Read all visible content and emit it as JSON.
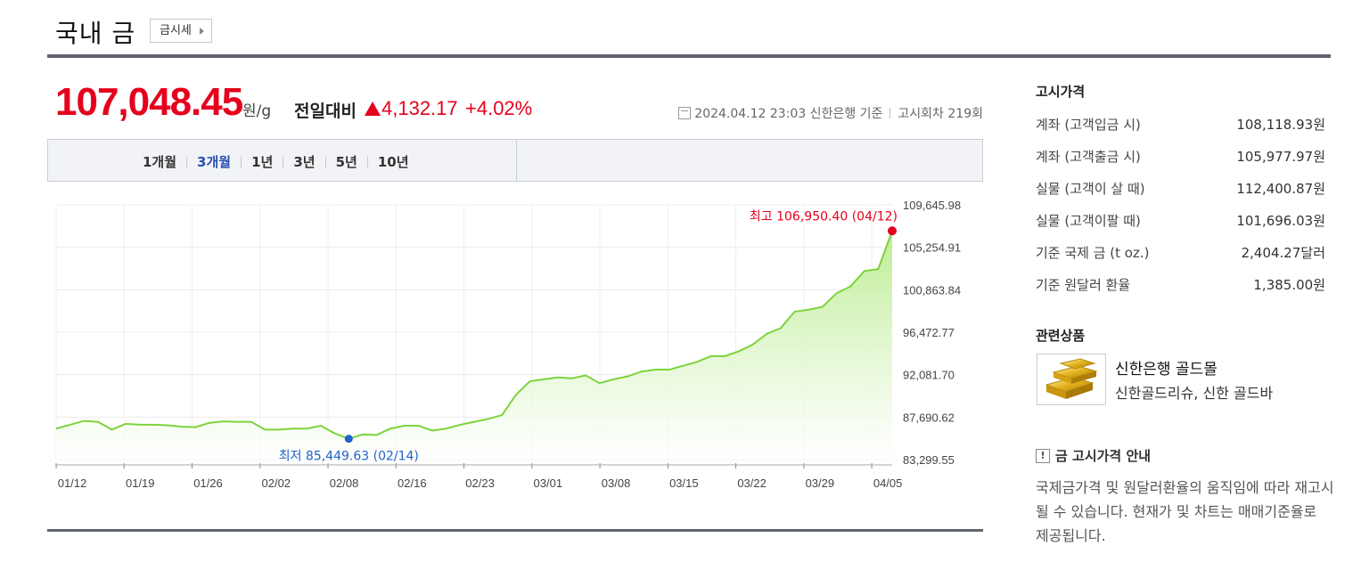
{
  "header": {
    "title": "국내 금",
    "quote_button": "금시세"
  },
  "price": {
    "value": "107,048.45",
    "unit": "원/g",
    "change_label": "전일대비",
    "change_value": "4,132.17",
    "change_percent": "+4.02%",
    "direction": "up",
    "meta_date": "2024.04.12 23:03 신한은행 기준",
    "meta_round": "고시회차 219회"
  },
  "periods": {
    "tabs": [
      "1개월",
      "3개월",
      "1년",
      "3년",
      "5년",
      "10년"
    ],
    "active": "3개월"
  },
  "chart_data": {
    "type": "area",
    "x_ticks": [
      "01/12",
      "01/19",
      "01/26",
      "02/02",
      "02/08",
      "02/16",
      "02/23",
      "03/01",
      "03/08",
      "03/15",
      "03/22",
      "03/29",
      "04/05"
    ],
    "y_ticks": [
      "109,645.98",
      "105,254.91",
      "100,863.84",
      "96,472.77",
      "92,081.70",
      "87,690.62",
      "83,299.55"
    ],
    "ylim": [
      83299.55,
      109645.98
    ],
    "max_label": "최고 106,950.40 (04/12)",
    "min_label": "최저 85,449.63 (02/14)",
    "max_point": {
      "date": "04/12",
      "value": 106950.4
    },
    "min_point": {
      "date": "02/14",
      "value": 85449.63
    },
    "values": [
      86500,
      86900,
      87300,
      87200,
      86400,
      87000,
      86900,
      86900,
      86850,
      86700,
      86650,
      87100,
      87250,
      87200,
      87200,
      86400,
      86400,
      86500,
      86500,
      86800,
      86000,
      85449.63,
      85900,
      85850,
      86500,
      86800,
      86800,
      86300,
      86500,
      86900,
      87200,
      87500,
      87900,
      90000,
      91400,
      91600,
      91800,
      91700,
      92000,
      91200,
      91600,
      91900,
      92400,
      92600,
      92600,
      93000,
      93400,
      94000,
      94000,
      94500,
      95200,
      96300,
      96900,
      98600,
      98800,
      99100,
      100500,
      101200,
      102800,
      103000,
      106950.4
    ],
    "line_color": "#7cd43c",
    "fill_color": "#b9ec8e",
    "max_color": "#e5001d",
    "min_color": "#1f62c9"
  },
  "notice_prices": {
    "title": "고시가격",
    "rows": [
      {
        "label": "계좌 (고객입금 시)",
        "value": "108,118.93원"
      },
      {
        "label": "계좌 (고객출금 시)",
        "value": "105,977.97원"
      },
      {
        "label": "실물 (고객이 살 때)",
        "value": "112,400.87원"
      },
      {
        "label": "실물 (고객이팔 때)",
        "value": "101,696.03원"
      },
      {
        "label": "기준 국제 금 (t oz.)",
        "value": "2,404.27달러"
      },
      {
        "label": "기준 원달러 환율",
        "value": "1,385.00원"
      }
    ]
  },
  "related": {
    "title": "관련상품",
    "name": "신한은행 골드몰",
    "sub": "신한골드리슈, 신한 골드바"
  },
  "notice": {
    "title": "금 고시가격 안내",
    "body": "국제금가격 및 원달러환율의 움직임에 따라 재고시될 수 있습니다. 현재가 및 차트는 매매기준율로 제공됩니다."
  }
}
